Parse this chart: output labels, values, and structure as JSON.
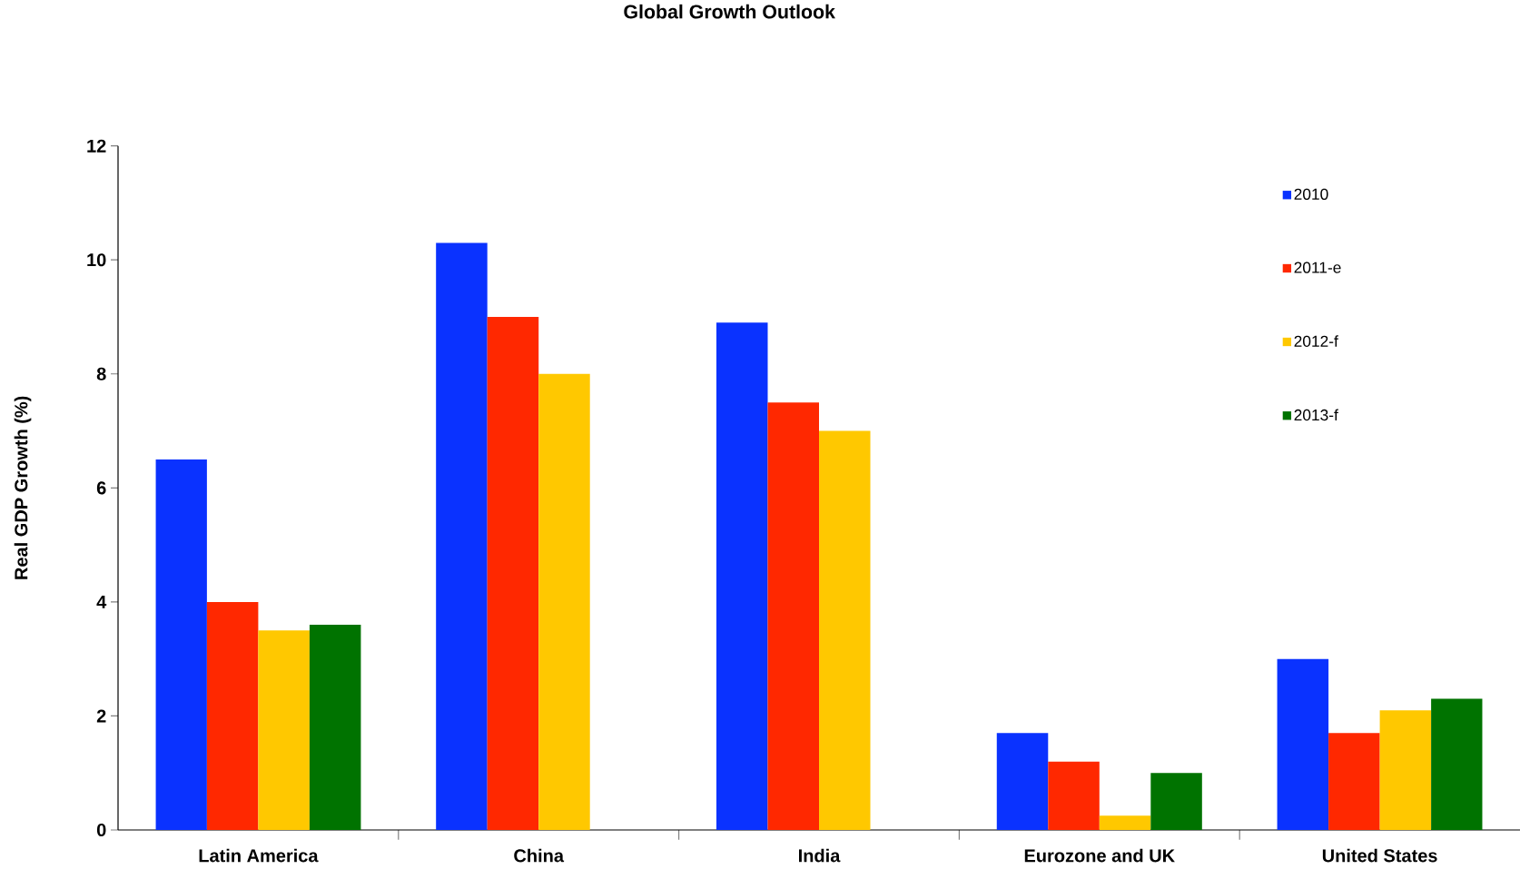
{
  "chart_data": {
    "type": "bar",
    "title": "Global Growth Outlook",
    "ylabel": "Real GDP Growth (%)",
    "categories": [
      "Latin America",
      "China",
      "India",
      "Eurozone and UK",
      "United States"
    ],
    "series": [
      {
        "name": "2010",
        "color": "#0a32ff",
        "values": [
          6.5,
          10.3,
          8.9,
          1.7,
          3.0
        ]
      },
      {
        "name": "2011-e",
        "color": "#ff2800",
        "values": [
          4.0,
          9.0,
          7.5,
          1.2,
          1.7
        ]
      },
      {
        "name": "2012-f",
        "color": "#ffc800",
        "values": [
          3.5,
          8.0,
          7.0,
          0.25,
          2.1
        ]
      },
      {
        "name": "2013-f",
        "color": "#007300",
        "values": [
          3.6,
          null,
          null,
          1.0,
          2.3
        ]
      }
    ],
    "ylim": [
      0,
      12
    ],
    "yticks": [
      0,
      2,
      4,
      6,
      8,
      10,
      12
    ],
    "grid": false,
    "legend": "top right"
  }
}
